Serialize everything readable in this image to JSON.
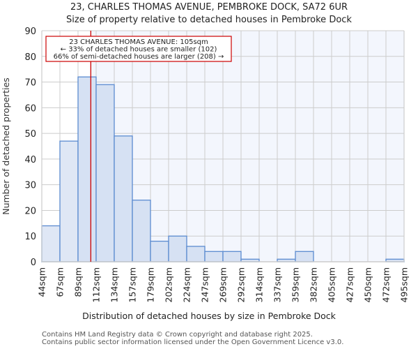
{
  "header": {
    "title": "23, CHARLES THOMAS AVENUE, PEMBROKE DOCK, SA72 6UR",
    "subtitle": "Size of property relative to detached houses in Pembroke Dock"
  },
  "annotation": {
    "line1": "23 CHARLES THOMAS AVENUE: 105sqm",
    "line2": "← 33% of detached houses are smaller (102)",
    "line3": "66% of semi-detached houses are larger (208) →",
    "marker_value_sqm": 105
  },
  "footer": {
    "line1": "Contains HM Land Registry data © Crown copyright and database right 2025.",
    "line2": "Contains public sector information licensed under the Open Government Licence v3.0."
  },
  "colors": {
    "bar_fill": "#d6e1f3",
    "bar_fill_left": "#dfe7f5",
    "bar_edge": "#5b8bd0",
    "marker_line": "#cc0000",
    "grid": "#cccccc",
    "plot_bg_right": "#f3f6fd",
    "plot_bg_left": "#ffffff"
  },
  "chart_data": {
    "type": "bar",
    "title": "23, CHARLES THOMAS AVENUE, PEMBROKE DOCK, SA72 6UR",
    "subtitle": "Size of property relative to detached houses in Pembroke Dock",
    "xlabel": "Distribution of detached houses by size in Pembroke Dock",
    "ylabel": "Number of detached properties",
    "categories": [
      "44sqm",
      "67sqm",
      "89sqm",
      "112sqm",
      "134sqm",
      "157sqm",
      "179sqm",
      "202sqm",
      "224sqm",
      "247sqm",
      "269sqm",
      "292sqm",
      "314sqm",
      "337sqm",
      "359sqm",
      "382sqm",
      "405sqm",
      "427sqm",
      "450sqm",
      "472sqm",
      "495sqm"
    ],
    "values": [
      14,
      47,
      72,
      69,
      49,
      24,
      8,
      10,
      6,
      4,
      4,
      1,
      0,
      1,
      4,
      0,
      0,
      0,
      0,
      1
    ],
    "yticks": [
      0,
      10,
      20,
      30,
      40,
      50,
      60,
      70,
      80,
      90
    ],
    "ylim": [
      0,
      90
    ],
    "grid": true,
    "marker": {
      "value": 105,
      "label": "23 CHARLES THOMAS AVENUE: 105sqm"
    },
    "annotations": [
      "23 CHARLES THOMAS AVENUE: 105sqm",
      "← 33% of detached houses are smaller (102)",
      "66% of semi-detached houses are larger (208) →"
    ]
  }
}
